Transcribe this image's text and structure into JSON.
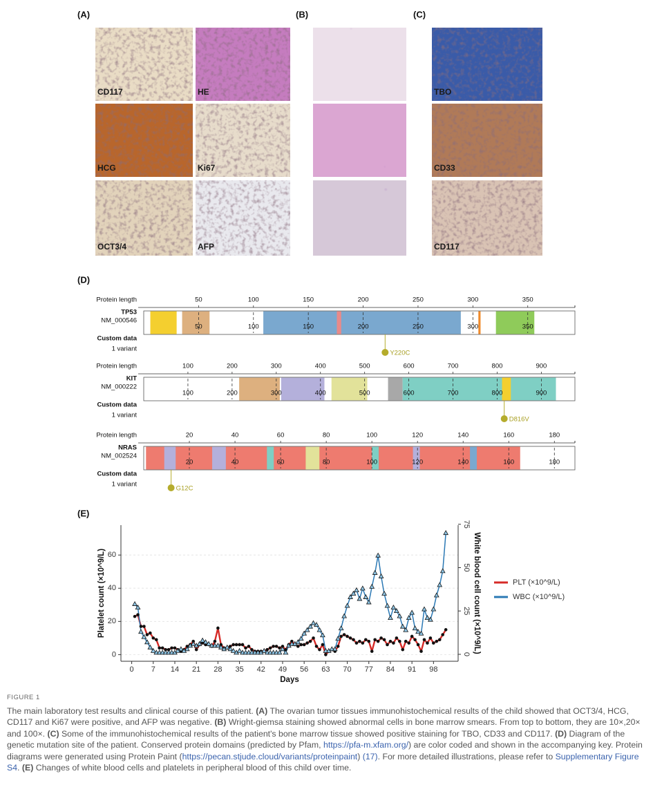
{
  "panels": {
    "A": {
      "label": "(A)",
      "images": [
        "CD117",
        "HE",
        "HCG",
        "Ki67",
        "OCT3/4",
        "AFP"
      ]
    },
    "B": {
      "label": "(B)"
    },
    "C": {
      "label": "(C)",
      "images": [
        "TBO",
        "CD33",
        "CD117"
      ]
    }
  },
  "proteins": {
    "label": "(D)",
    "axis_label": "Protein length",
    "custom_label": "Custom data",
    "variant_count": "1 variant",
    "items": [
      {
        "name": "TP53",
        "accession": "NM_000546",
        "length": 393,
        "xticks": [
          50,
          100,
          150,
          200,
          250,
          300,
          350
        ],
        "domains": [
          {
            "start": 6,
            "end": 30,
            "color": "#f4cf2f"
          },
          {
            "start": 35,
            "end": 60,
            "color": "#ddb07f"
          },
          {
            "start": 109,
            "end": 289,
            "color": "#7aa8cf"
          },
          {
            "start": 176,
            "end": 180,
            "color": "#e88a8a"
          },
          {
            "start": 305,
            "end": 307,
            "color": "#f08a2a"
          },
          {
            "start": 321,
            "end": 356,
            "color": "#8fcb5a"
          }
        ],
        "variant": {
          "label": "Y220C",
          "position": 220
        }
      },
      {
        "name": "KIT",
        "accession": "NM_000222",
        "length": 976,
        "xticks": [
          100,
          200,
          300,
          400,
          500,
          600,
          700,
          800,
          900
        ],
        "domains": [
          {
            "start": 216,
            "end": 308,
            "color": "#ddb07f"
          },
          {
            "start": 311,
            "end": 409,
            "color": "#b4b0db"
          },
          {
            "start": 425,
            "end": 506,
            "color": "#e2e29a"
          },
          {
            "start": 553,
            "end": 586,
            "color": "#a8a8a8"
          },
          {
            "start": 586,
            "end": 933,
            "color": "#7fcfc4"
          },
          {
            "start": 811,
            "end": 831,
            "color": "#f4cf2f"
          }
        ],
        "variant": {
          "label": "D816V",
          "position": 816
        }
      },
      {
        "name": "NRAS",
        "accession": "NM_002524",
        "length": 189,
        "xticks": [
          20,
          40,
          60,
          80,
          100,
          120,
          140,
          160,
          180
        ],
        "domains": [
          {
            "start": 1,
            "end": 165,
            "color": "#ee7b6f"
          },
          {
            "start": 9,
            "end": 14,
            "color": "#b4b0db"
          },
          {
            "start": 30,
            "end": 36,
            "color": "#b4b0db"
          },
          {
            "start": 54,
            "end": 57,
            "color": "#7fcfc4"
          },
          {
            "start": 71,
            "end": 77,
            "color": "#e2e29a"
          },
          {
            "start": 100,
            "end": 103,
            "color": "#7fcfc4"
          },
          {
            "start": 118,
            "end": 121,
            "color": "#b4b0db"
          },
          {
            "start": 143,
            "end": 146,
            "color": "#7aa8cf"
          }
        ],
        "variant": {
          "label": "G12C",
          "position": 12
        }
      }
    ]
  },
  "chart_data": {
    "type": "line",
    "panel_label": "(E)",
    "xlabel": "Days",
    "ylabel": "Platelet count (×10^9/L)",
    "y2label": "White blood cell count (×10^9/L)",
    "x": [
      1,
      2,
      3,
      4,
      5,
      6,
      7,
      8,
      9,
      10,
      11,
      12,
      13,
      14,
      15,
      16,
      17,
      18,
      19,
      20,
      21,
      22,
      23,
      24,
      25,
      26,
      27,
      28,
      29,
      30,
      31,
      32,
      33,
      34,
      35,
      36,
      37,
      38,
      39,
      40,
      41,
      42,
      43,
      44,
      45,
      46,
      47,
      48,
      49,
      50,
      51,
      52,
      53,
      54,
      55,
      56,
      57,
      58,
      59,
      60,
      61,
      62,
      63,
      64,
      65,
      66,
      67,
      68,
      69,
      70,
      71,
      72,
      73,
      74,
      75,
      76,
      77,
      78,
      79,
      80,
      81,
      82,
      83,
      84,
      85,
      86,
      87,
      88,
      89,
      90,
      91,
      92,
      93,
      94,
      95,
      96,
      97,
      98,
      99,
      100,
      101,
      102
    ],
    "xlim": [
      -3.5,
      106
    ],
    "xticks": [
      0,
      7,
      14,
      21,
      28,
      35,
      42,
      49,
      56,
      63,
      70,
      77,
      84,
      91,
      98
    ],
    "ylim": [
      -4,
      78
    ],
    "yticks": [
      0,
      20,
      40,
      60
    ],
    "y2lim": [
      -4,
      74.5
    ],
    "y2ticks": [
      0,
      25,
      50,
      75
    ],
    "grid": true,
    "legend": "right",
    "series": [
      {
        "name": "PLT (×10^9/L)",
        "color": "#d62a27",
        "marker": "circle",
        "values": [
          23,
          24,
          17,
          17,
          12,
          13,
          10,
          9,
          4,
          4,
          3,
          3,
          4,
          4,
          3,
          2,
          3,
          5,
          6,
          8,
          3,
          6,
          7,
          6,
          6,
          5,
          8,
          16,
          6,
          4,
          4,
          5,
          6,
          6,
          6,
          6,
          4,
          5,
          3,
          2,
          2,
          2,
          2,
          3,
          4,
          5,
          5,
          4,
          5,
          3,
          6,
          8,
          6,
          5,
          6,
          6,
          7,
          8,
          10,
          5,
          3,
          6,
          0,
          2,
          3,
          2,
          5,
          11,
          12,
          11,
          10,
          9,
          7,
          8,
          7,
          9,
          8,
          2,
          9,
          8,
          10,
          9,
          6,
          8,
          7,
          10,
          8,
          3,
          8,
          7,
          11,
          9,
          6,
          2,
          9,
          7,
          10,
          7,
          8,
          9,
          12,
          15
        ]
      },
      {
        "name": "WBC (×10^9/L)",
        "color": "#2a78b4",
        "marker": "triangle",
        "axis": "y2",
        "values": [
          29,
          27,
          13,
          10,
          7,
          4,
          2,
          1,
          1,
          1,
          1,
          1,
          1,
          1,
          2,
          3,
          2,
          3,
          5,
          6,
          5,
          6,
          8,
          7,
          6,
          5,
          5,
          5,
          4,
          3,
          4,
          3,
          2,
          1,
          2,
          1,
          1,
          1,
          1,
          1,
          1,
          1,
          2,
          1,
          1,
          1,
          1,
          1,
          3,
          1,
          5,
          6,
          6,
          7,
          9,
          12,
          14,
          16,
          18,
          17,
          14,
          11,
          2,
          2,
          3,
          3,
          9,
          15,
          22,
          28,
          33,
          35,
          37,
          32,
          38,
          33,
          30,
          39,
          47,
          57,
          45,
          35,
          28,
          21,
          27,
          25,
          22,
          16,
          14,
          21,
          24,
          15,
          13,
          12,
          26,
          21,
          20,
          26,
          34,
          40,
          48,
          70
        ]
      }
    ]
  },
  "caption": {
    "figure_label": "FIGURE 1",
    "runs": [
      {
        "text": "The main laboratory test results and clinical course of this patient. ",
        "style": "normal"
      },
      {
        "text": "(A)",
        "style": "bold"
      },
      {
        "text": " The ovarian tumor tissues immunohistochemical results of the child showed that OCT3/4, HCG, CD117 and Ki67 were positive, and AFP was negative. ",
        "style": "normal"
      },
      {
        "text": "(B)",
        "style": "bold"
      },
      {
        "text": " Wright-giemsa staining showed abnormal cells in bone marrow smears. From top to bottom, they are 10×,20× and 100×. ",
        "style": "normal"
      },
      {
        "text": "(C)",
        "style": "bold"
      },
      {
        "text": " Some of the immunohistochemical results of the patient's bone marrow tissue showed positive staining for TBO, CD33 and CD117. ",
        "style": "normal"
      },
      {
        "text": "(D)",
        "style": "bold"
      },
      {
        "text": " Diagram of the genetic mutation site of the patient. Conserved protein domains (predicted by Pfam, ",
        "style": "normal"
      },
      {
        "text": "https://pfa-m.xfam.org/",
        "style": "link"
      },
      {
        "text": ") are color coded and shown in the accompanying key. Protein diagrams were generated using Protein Paint (",
        "style": "normal"
      },
      {
        "text": "https://pecan.stjude.cloud/variants/proteinpaint",
        "style": "link"
      },
      {
        "text": ") ",
        "style": "normal"
      },
      {
        "text": "(17)",
        "style": "link"
      },
      {
        "text": ". For more detailed illustrations, please refer to ",
        "style": "normal"
      },
      {
        "text": "Supplementary Figure S4",
        "style": "link"
      },
      {
        "text": ". ",
        "style": "normal"
      },
      {
        "text": "(E)",
        "style": "bold"
      },
      {
        "text": " Changes of white blood cells and platelets in peripheral blood of this child over time.",
        "style": "normal"
      }
    ]
  }
}
